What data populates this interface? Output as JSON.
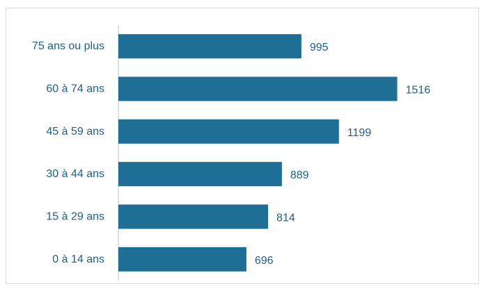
{
  "chart_data": {
    "type": "bar",
    "orientation": "horizontal",
    "categories": [
      "75 ans ou plus",
      "60 à 74 ans",
      "45 à 59 ans",
      "30 à 44 ans",
      "15 à 29 ans",
      "0 à 14 ans"
    ],
    "values": [
      995,
      1516,
      1199,
      889,
      814,
      696
    ],
    "title": "",
    "xlabel": "",
    "ylabel": "",
    "xlim": [
      0,
      1750
    ],
    "grid": false,
    "legend": "none",
    "bar_color": "#1f6e96",
    "text_color": "#1f5f86",
    "axis_color": "#bfbfbf"
  }
}
